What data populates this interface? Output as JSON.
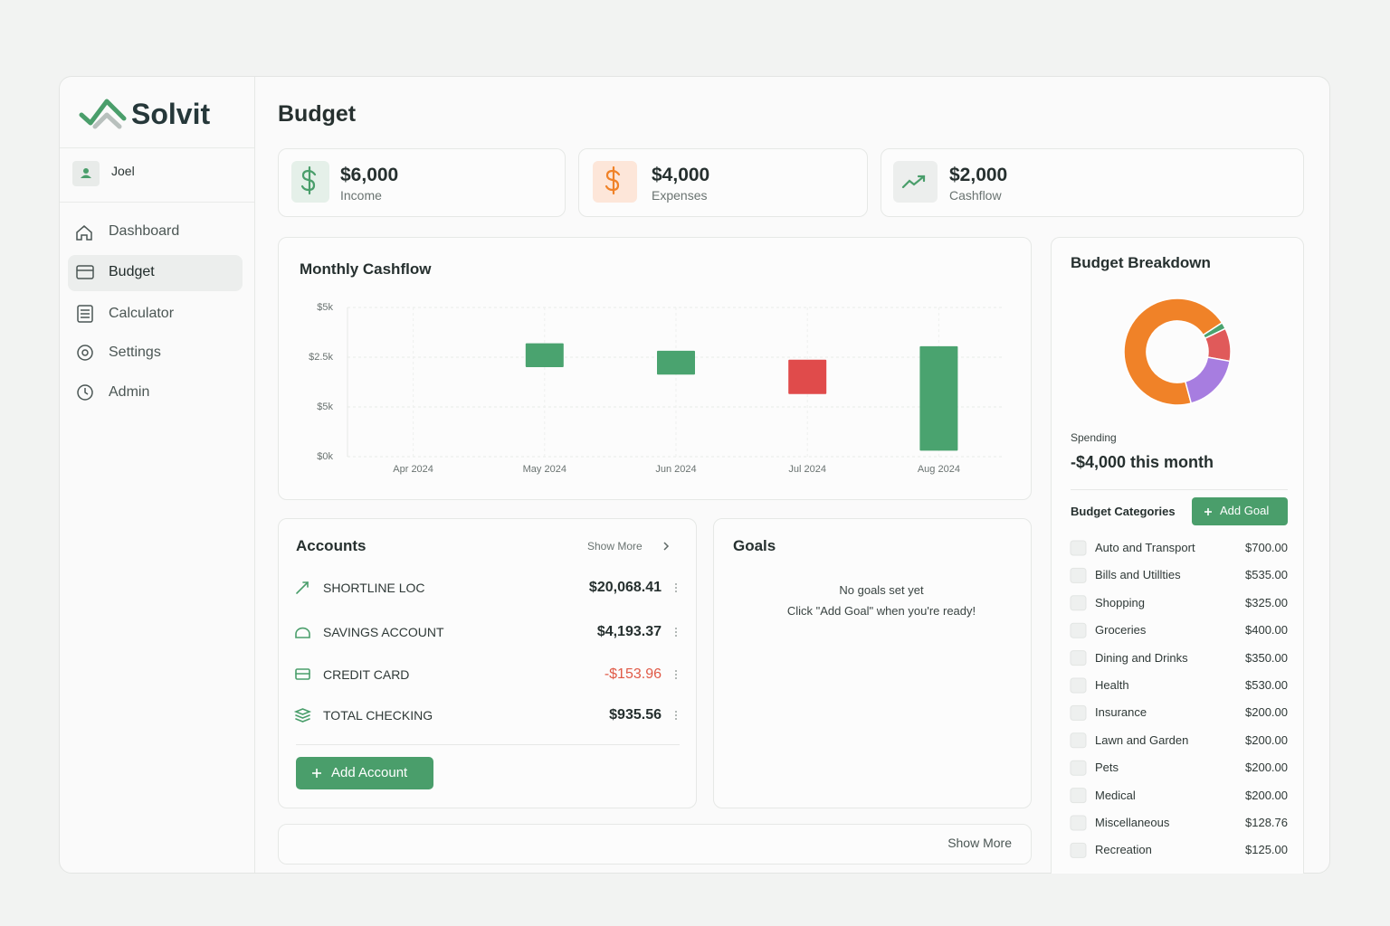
{
  "brand": "Solvit",
  "user": "Joel",
  "nav": [
    "Dashboard",
    "Budget",
    "Calculator",
    "Settings",
    "Admin"
  ],
  "page_title": "Budget",
  "summary": [
    {
      "value": "$6,000",
      "label": "Income"
    },
    {
      "value": "$4,000",
      "label": "Expenses"
    },
    {
      "value": "$2,000",
      "label": "Cashflow"
    }
  ],
  "chart_data": [
    {
      "type": "bar",
      "title": "Monthly Cashflow",
      "categories": [
        "Apr 2024",
        "May 2024",
        "Jun 2024",
        "Jul 2024",
        "Aug 2024"
      ],
      "y_axis_labels": [
        "$5k",
        "$2.5k",
        "$5k",
        "$0k"
      ],
      "low": [
        null,
        3000,
        2750,
        2100,
        200
      ],
      "high": [
        null,
        3800,
        3550,
        3250,
        3700
      ],
      "colors": [
        null,
        "#4aa36f",
        "#4aa36f",
        "#e04b4b",
        "#4aa36f"
      ],
      "ylim": [
        0,
        5000
      ],
      "grid": true
    },
    {
      "type": "pie",
      "title": "Budget Breakdown",
      "values": [
        70,
        2,
        10,
        18
      ],
      "colors": [
        "#f08228",
        "#4aa36f",
        "#e05a5a",
        "#a77de0"
      ],
      "donut": true
    }
  ],
  "spending": {
    "label": "Spending",
    "value": "-$4,000 this month"
  },
  "categories_panel": {
    "title": "Budget Categories",
    "button": "Add Goal",
    "items": [
      {
        "name": "Auto and Transport",
        "amount": "$700.00"
      },
      {
        "name": "Bills and Utillties",
        "amount": "$535.00"
      },
      {
        "name": "Shopping",
        "amount": "$325.00"
      },
      {
        "name": "Groceries",
        "amount": "$400.00"
      },
      {
        "name": "Dining and Drinks",
        "amount": "$350.00"
      },
      {
        "name": "Health",
        "amount": "$530.00"
      },
      {
        "name": "Insurance",
        "amount": "$200.00"
      },
      {
        "name": "Lawn and Garden",
        "amount": "$200.00"
      },
      {
        "name": "Pets",
        "amount": "$200.00"
      },
      {
        "name": "Medical",
        "amount": "$200.00"
      },
      {
        "name": "Miscellaneous",
        "amount": "$128.76"
      },
      {
        "name": "Recreation",
        "amount": "$125.00"
      }
    ]
  },
  "accounts": {
    "title": "Accounts",
    "show_more": "Show More",
    "items": [
      {
        "name": "SHORTLINE LOC",
        "amount": "$20,068.41"
      },
      {
        "name": "SAVINGS ACCOUNT",
        "amount": "$4,193.37"
      },
      {
        "name": "CREDIT CARD",
        "amount": "-$153.96"
      },
      {
        "name": "TOTAL CHECKING",
        "amount": "$935.56"
      }
    ],
    "button": "Add Account"
  },
  "goals": {
    "title": "Goals",
    "empty": "No goals set yet",
    "hint": "Click \"Add Goal\" when you're ready!"
  },
  "footer_show_more": "Show More"
}
